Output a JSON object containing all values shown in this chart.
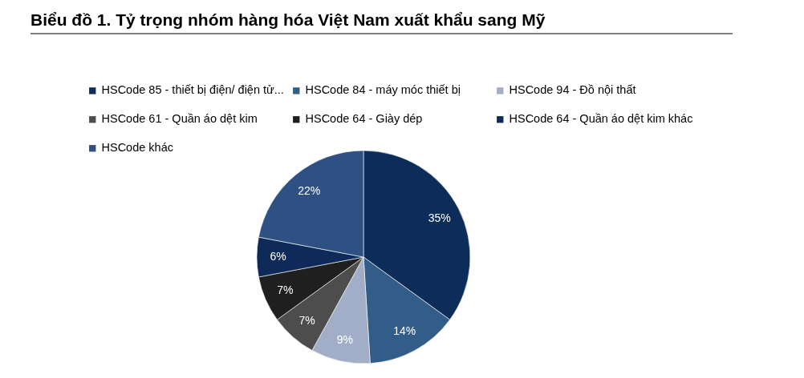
{
  "chart_data": {
    "type": "pie",
    "title": "Biểu đồ 1. Tỷ trọng nhóm hàng hóa Việt Nam xuất khẩu sang Mỹ",
    "categories": [
      "HSCode 85 - thiết bị điện/ điện tử...",
      "HSCode 84 - máy móc thiết bị",
      "HSCode 94 - Đồ nội thất",
      "HSCode 61 - Quần áo dệt kim",
      "HSCode 64 -  Giày dép",
      "HSCode 64 -  Quần áo dệt kim khác",
      "HSCode khác"
    ],
    "values": [
      35,
      14,
      9,
      7,
      7,
      6,
      22
    ],
    "value_labels": [
      "35%",
      "14%",
      "9%",
      "7%",
      "7%",
      "6%",
      "22%"
    ],
    "colors": [
      "#0c2d5a",
      "#325d88",
      "#a2aec8",
      "#4d4d4d",
      "#1f1f1f",
      "#0d2a58",
      "#2f5082"
    ],
    "legend": "top"
  }
}
